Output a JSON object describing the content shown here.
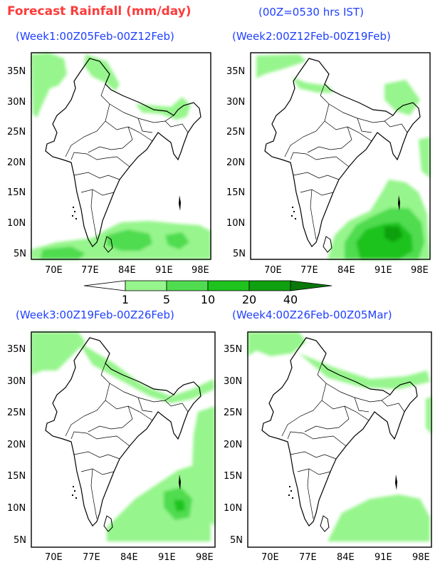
{
  "header": {
    "title": "Forecast Rainfall (mm/day)",
    "subtitle": "(00Z=0530 hrs IST)"
  },
  "panels": [
    {
      "title": "(Week1:00Z05Feb-00Z12Feb)"
    },
    {
      "title": "(Week2:00Z12Feb-00Z19Feb)"
    },
    {
      "title": "(Week3:00Z19Feb-00Z26Feb)"
    },
    {
      "title": "(Week4:00Z26Feb-00Z05Mar)"
    }
  ],
  "axes": {
    "lon_labels": [
      "70E",
      "77E",
      "84E",
      "91E",
      "98E"
    ],
    "lat_labels": [
      "35N",
      "30N",
      "25N",
      "20N",
      "15N",
      "10N",
      "5N"
    ]
  },
  "legend": {
    "unit": "mm/day",
    "thresholds": [
      "1",
      "5",
      "10",
      "20",
      "40"
    ],
    "colors": [
      "#ffffff",
      "#96f58c",
      "#50dc50",
      "#1ec31e",
      "#0fa00f",
      "#0a780a"
    ]
  }
}
